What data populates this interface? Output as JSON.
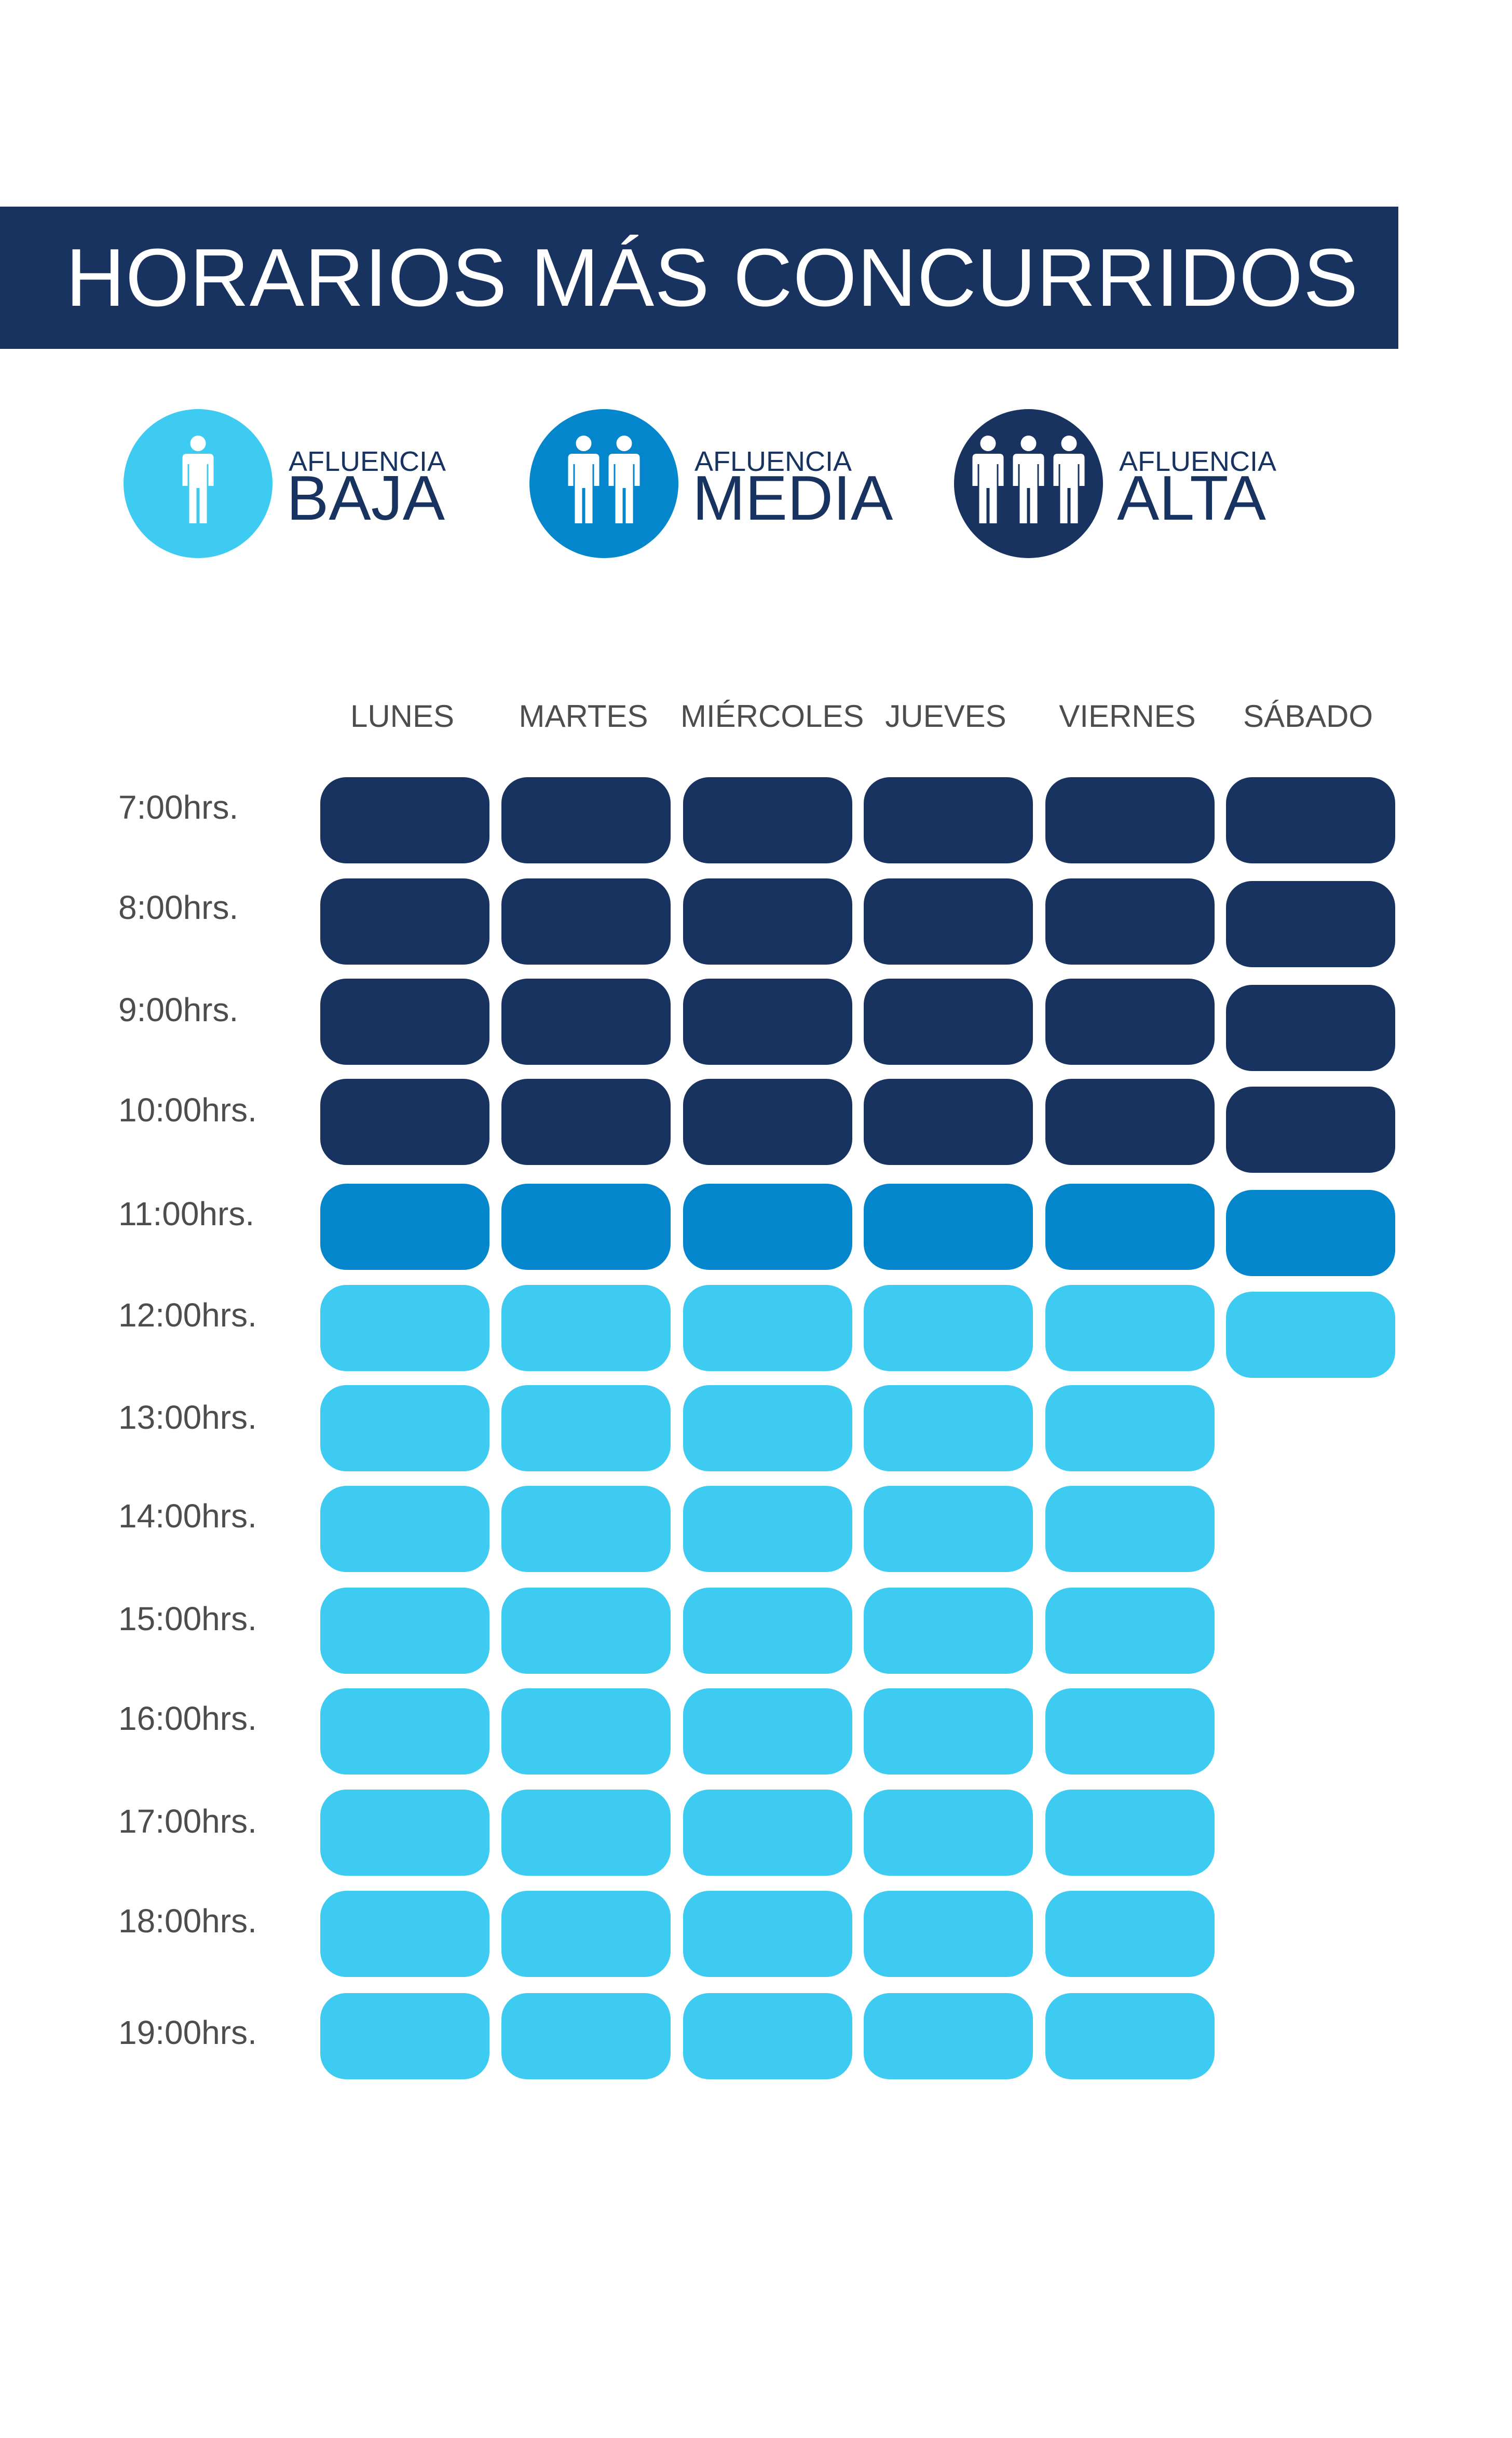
{
  "header": {
    "title": "HORARIOS MÁS CONCURRIDOS"
  },
  "legend": [
    {
      "small_label": "AFLUENCIA",
      "big_label": "BAJA",
      "icon": "one-person-icon",
      "people": 1,
      "color": "#3ecbf1"
    },
    {
      "small_label": "AFLUENCIA",
      "big_label": "MEDIA",
      "icon": "two-people-icon",
      "people": 2,
      "color": "#0486cc"
    },
    {
      "small_label": "AFLUENCIA",
      "big_label": "ALTA",
      "icon": "three-people-icon",
      "people": 3,
      "color": "#18335f"
    }
  ],
  "chart_data": {
    "type": "heatmap",
    "title": "HORARIOS MÁS CONCURRIDOS",
    "columns": [
      "LUNES",
      "MARTES",
      "MIÉRCOLES",
      "JUEVES",
      "VIERNES",
      "SÁBADO"
    ],
    "rows": [
      "7:00hrs.",
      "8:00hrs.",
      "9:00hrs.",
      "10:00hrs.",
      "11:00hrs.",
      "12:00hrs.",
      "13:00hrs.",
      "14:00hrs.",
      "15:00hrs.",
      "16:00hrs.",
      "17:00hrs.",
      "18:00hrs.",
      "19:00hrs."
    ],
    "levels": [
      "BAJA",
      "MEDIA",
      "ALTA"
    ],
    "level_colors": {
      "BAJA": "#3ecbf1",
      "MEDIA": "#0486cc",
      "ALTA": "#18335f"
    },
    "values": [
      [
        "ALTA",
        "ALTA",
        "ALTA",
        "ALTA",
        "ALTA",
        "ALTA"
      ],
      [
        "ALTA",
        "ALTA",
        "ALTA",
        "ALTA",
        "ALTA",
        "ALTA"
      ],
      [
        "ALTA",
        "ALTA",
        "ALTA",
        "ALTA",
        "ALTA",
        "ALTA"
      ],
      [
        "ALTA",
        "ALTA",
        "ALTA",
        "ALTA",
        "ALTA",
        "ALTA"
      ],
      [
        "MEDIA",
        "MEDIA",
        "MEDIA",
        "MEDIA",
        "MEDIA",
        "MEDIA"
      ],
      [
        "BAJA",
        "BAJA",
        "BAJA",
        "BAJA",
        "BAJA",
        "BAJA"
      ],
      [
        "BAJA",
        "BAJA",
        "BAJA",
        "BAJA",
        "BAJA",
        null
      ],
      [
        "BAJA",
        "BAJA",
        "BAJA",
        "BAJA",
        "BAJA",
        null
      ],
      [
        "BAJA",
        "BAJA",
        "BAJA",
        "BAJA",
        "BAJA",
        null
      ],
      [
        "BAJA",
        "BAJA",
        "BAJA",
        "BAJA",
        "BAJA",
        null
      ],
      [
        "BAJA",
        "BAJA",
        "BAJA",
        "BAJA",
        "BAJA",
        null
      ],
      [
        "BAJA",
        "BAJA",
        "BAJA",
        "BAJA",
        "BAJA",
        null
      ],
      [
        "BAJA",
        "BAJA",
        "BAJA",
        "BAJA",
        "BAJA",
        null
      ]
    ]
  }
}
